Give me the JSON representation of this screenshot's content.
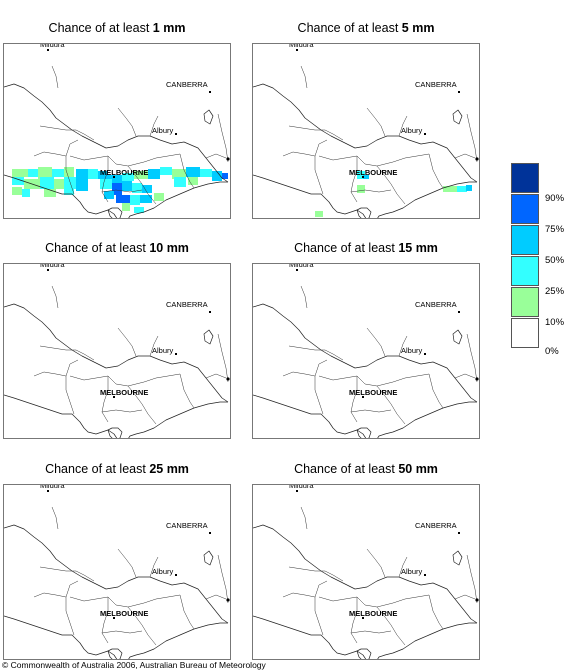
{
  "panels": [
    {
      "title_prefix": "Chance of at least ",
      "threshold": "1 mm"
    },
    {
      "title_prefix": "Chance of at least ",
      "threshold": "5 mm"
    },
    {
      "title_prefix": "Chance of at least ",
      "threshold": "10 mm"
    },
    {
      "title_prefix": "Chance of at least ",
      "threshold": "15 mm"
    },
    {
      "title_prefix": "Chance of at least ",
      "threshold": "25 mm"
    },
    {
      "title_prefix": "Chance of at least ",
      "threshold": "50 mm"
    }
  ],
  "places": {
    "mildura": "Mildura",
    "canberra": "CANBERRA",
    "albury": "Albury",
    "melbourne": "MELBOURNE"
  },
  "legend": {
    "colors": [
      "#003399",
      "#0066ff",
      "#00ccff",
      "#33ffff",
      "#99ff99",
      "#ffffff"
    ],
    "labels": [
      "90%",
      "75%",
      "50%",
      "25%",
      "10%",
      "0%"
    ]
  },
  "copyright": "© Commonwealth of Australia 2006, Australian Bureau of Meteorology"
}
